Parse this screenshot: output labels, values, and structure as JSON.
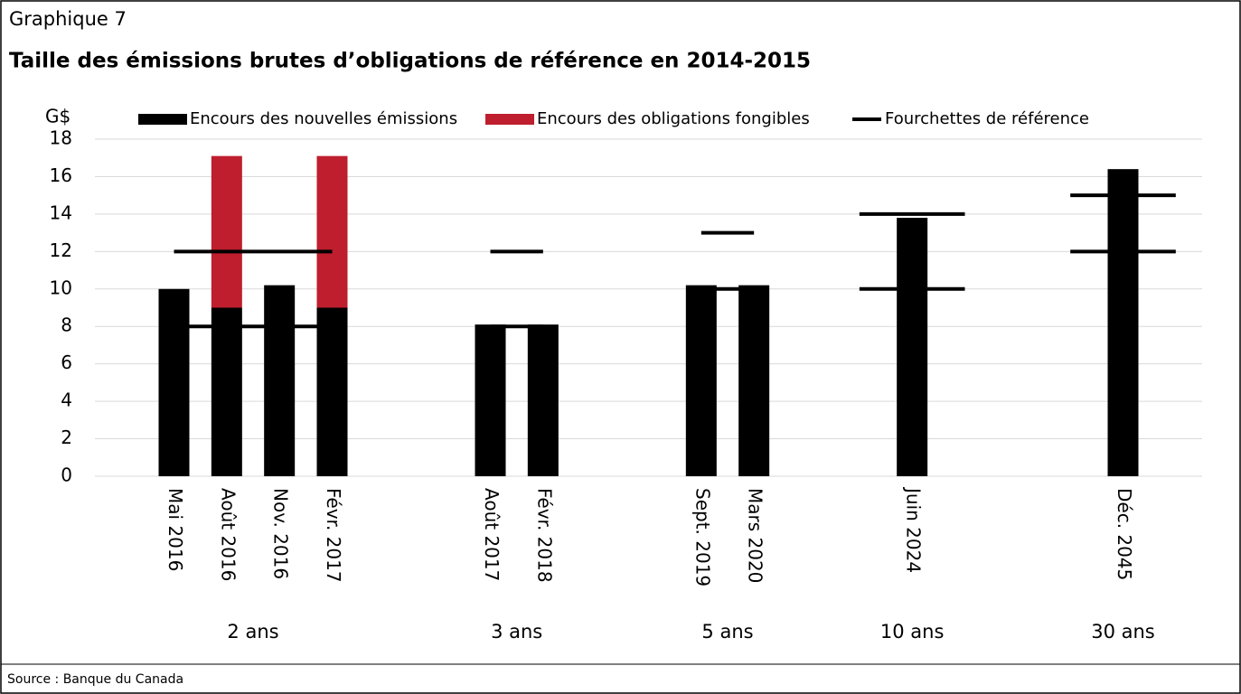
{
  "chart_data": {
    "type": "bar",
    "stacked": true,
    "supertitle": "Graphique 7",
    "title": "Taille des émissions brutes d’obligations de référence en 2014-2015",
    "y_label": "G$",
    "source": "Source : Banque du Canada",
    "categories": [
      null,
      "Mai 2016",
      "Août 2016",
      "Nov. 2016",
      "Févr. 2017",
      null,
      null,
      "Août 2017",
      "Févr. 2018",
      null,
      null,
      "Sept. 2019",
      "Mars 2020",
      null,
      null,
      "Juin 2024",
      null,
      null,
      null,
      "Déc. 2045",
      null
    ],
    "groups": [
      {
        "name": "2 ans",
        "first": 1,
        "last": 4
      },
      {
        "name": "3 ans",
        "first": 7,
        "last": 8
      },
      {
        "name": "5 ans",
        "first": 11,
        "last": 12
      },
      {
        "name": "10 ans",
        "first": 15,
        "last": 15
      },
      {
        "name": "30 ans",
        "first": 19,
        "last": 19
      }
    ],
    "series": [
      {
        "name": "Encours des nouvelles émissions",
        "color": "#000000",
        "values": [
          null,
          10,
          9,
          10.2,
          9,
          null,
          null,
          8.1,
          8.1,
          null,
          null,
          10.2,
          10.2,
          null,
          null,
          13.8,
          null,
          null,
          null,
          16.4,
          null
        ]
      },
      {
        "name": "Encours des obligations fongibles",
        "color": "#be1e2d",
        "values": [
          null,
          null,
          8.1,
          null,
          8.1,
          null,
          null,
          null,
          null,
          null,
          null,
          null,
          null,
          null,
          null,
          null,
          null,
          null,
          null,
          null,
          null
        ]
      }
    ],
    "reference_ranges": {
      "name": "Fourchettes de référence",
      "color": "#000000",
      "low": [
        null,
        8,
        8,
        8,
        8,
        null,
        null,
        8,
        8,
        null,
        null,
        10,
        10,
        null,
        null,
        10,
        null,
        null,
        null,
        12,
        null
      ],
      "high": [
        null,
        12,
        12,
        12,
        12,
        null,
        null,
        12,
        12,
        null,
        null,
        13,
        13,
        null,
        null,
        14,
        null,
        null,
        null,
        15,
        null
      ]
    },
    "ylim": [
      0,
      18
    ],
    "yticks": [
      0,
      2,
      4,
      6,
      8,
      10,
      12,
      14,
      16,
      18
    ],
    "grid": true
  }
}
